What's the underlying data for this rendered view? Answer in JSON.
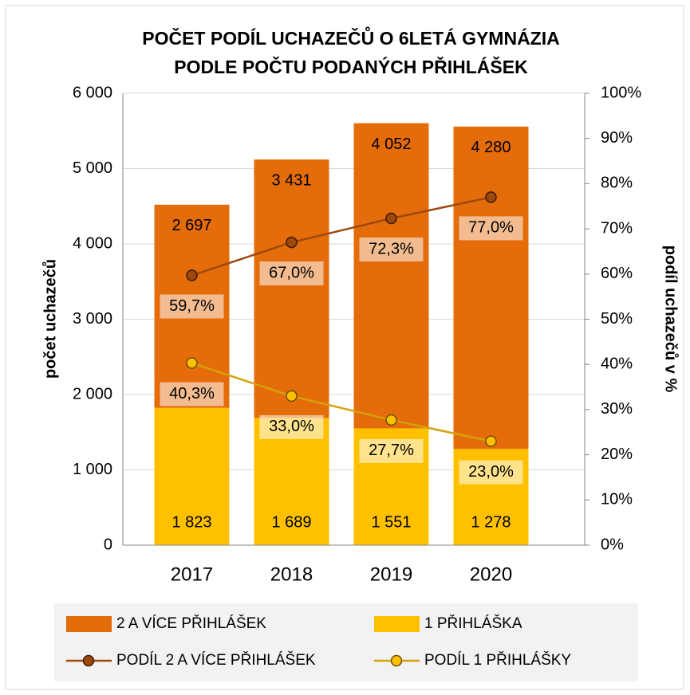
{
  "chart_data": {
    "type": "bar",
    "stacked": true,
    "title": [
      "POČET PODÍL UCHAZEČŮ O 6LETÁ GYMNÁZIA",
      "PODLE POČTU PODANÝCH PŘIHLÁŠEK"
    ],
    "ylabel": "počet uchazečů",
    "y2label": "podíl uchazečů v %",
    "categories": [
      "2017",
      "2018",
      "2019",
      "2020"
    ],
    "series": [
      {
        "name": "2 A VÍCE PŘIHLÁŠEK",
        "type": "bar",
        "color": "#e46c0a",
        "values": [
          2697,
          3431,
          4052,
          4280
        ],
        "value_labels": [
          "2 697",
          "3 431",
          "4 052",
          "4 280"
        ]
      },
      {
        "name": "1 PŘIHLÁŠKA",
        "type": "bar",
        "color": "#ffc000",
        "values": [
          1823,
          1689,
          1551,
          1278
        ],
        "value_labels": [
          "1 823",
          "1 689",
          "1 551",
          "1 278"
        ]
      },
      {
        "name": "PODÍL 2 A VÍCE PŘIHLÁŠEK",
        "type": "line",
        "axis": "y2",
        "color": "#9e480e",
        "values": [
          59.7,
          67.0,
          72.3,
          77.0
        ],
        "value_labels": [
          "59,7%",
          "67,0%",
          "72,3%",
          "77,0%"
        ]
      },
      {
        "name": "PODÍL 1 PŘIHLÁŠKY",
        "type": "line",
        "axis": "y2",
        "color": "#d4a20a",
        "values": [
          40.3,
          33.0,
          27.7,
          23.0
        ],
        "value_labels": [
          "40,3%",
          "33,0%",
          "27,7%",
          "23,0%"
        ]
      }
    ],
    "ylim": [
      0,
      6000
    ],
    "yticks": [
      0,
      {
        "value": 1000,
        "label": "1 000"
      },
      {
        "value": 2000,
        "label": "2 000"
      },
      {
        "value": 3000,
        "label": "3 000"
      },
      {
        "value": 4000,
        "label": "4 000"
      },
      {
        "value": 5000,
        "label": "5 000"
      },
      {
        "value": 6000,
        "label": "6 000"
      }
    ],
    "y2lim": [
      0,
      100
    ],
    "y2ticks": [
      {
        "value": 0,
        "label": "0%"
      },
      {
        "value": 10,
        "label": "10%"
      },
      {
        "value": 20,
        "label": "20%"
      },
      {
        "value": 30,
        "label": "30%"
      },
      {
        "value": 40,
        "label": "40%"
      },
      {
        "value": 50,
        "label": "50%"
      },
      {
        "value": 60,
        "label": "60%"
      },
      {
        "value": 70,
        "label": "70%"
      },
      {
        "value": 80,
        "label": "80%"
      },
      {
        "value": 90,
        "label": "90%"
      },
      {
        "value": 100,
        "label": "100%"
      }
    ],
    "grid": true,
    "legend": "bottom"
  }
}
